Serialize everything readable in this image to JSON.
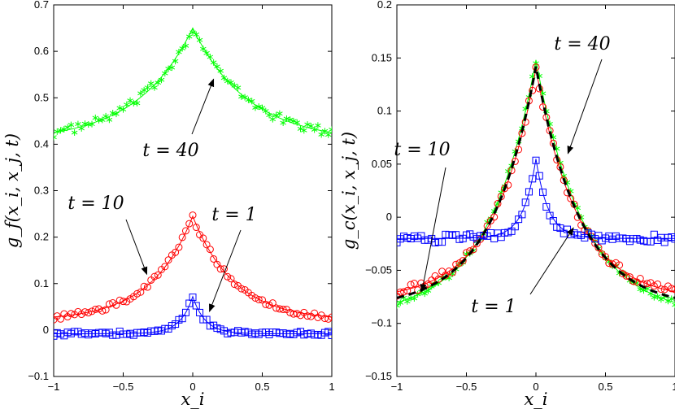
{
  "chart_data": [
    {
      "type": "line",
      "ylabel": "g_f(x_i, x_j, t)",
      "xlabel": "x_i",
      "xlim": [
        -1,
        1
      ],
      "ylim": [
        -0.1,
        0.7
      ],
      "xticks": [
        "−1",
        "−0.5",
        "0",
        "0.5",
        "1"
      ],
      "yticks": [
        "−0.1",
        "0",
        "0.1",
        "0.2",
        "0.3",
        "0.4",
        "0.5",
        "0.6",
        "0.7"
      ],
      "grid": false,
      "series": [
        {
          "label": "t = 40",
          "color": "#00ff00",
          "marker": "star",
          "model": {
            "base": 0.405,
            "peak": 0.65,
            "decay": 0.4,
            "skew": 0.0
          },
          "noise": 0.01
        },
        {
          "label": "t = 10",
          "color": "#ff0000",
          "marker": "circle",
          "model": {
            "base": 0.02,
            "peak": 0.245,
            "decay": 0.3,
            "skew": 0.0
          },
          "noise": 0.006
        },
        {
          "label": "t = 1",
          "color": "#0000ff",
          "marker": "square",
          "model": {
            "base": -0.008,
            "peak": 0.072,
            "decay": 0.09,
            "skew": 0.0
          },
          "noise": 0.005
        }
      ],
      "annotations": [
        {
          "text": "t = 40",
          "target": [
            0.15,
            0.54
          ]
        },
        {
          "text": "t = 10",
          "target": [
            -0.33,
            0.12
          ]
        },
        {
          "text": "t = 1",
          "target": [
            0.12,
            0.04
          ]
        }
      ]
    },
    {
      "type": "line",
      "ylabel": "g_c(x_i, x_j, t)",
      "xlabel": "x_i",
      "xlim": [
        -1,
        1
      ],
      "ylim": [
        -0.15,
        0.2
      ],
      "xticks": [
        "−1",
        "−0.5",
        "0",
        "0.5",
        "1"
      ],
      "yticks": [
        "−0.15",
        "−0.1",
        "−0.05",
        "0",
        "0.05",
        "0.1",
        "0.15",
        "0.2"
      ],
      "grid": false,
      "series": [
        {
          "label": "t = 40",
          "color": "#00ff00",
          "marker": "star",
          "model": {
            "base": -0.093,
            "peak": 0.148,
            "decay": 0.34,
            "skew": 0.0
          },
          "noise": 0.003
        },
        {
          "label": "t = 10",
          "color": "#ff0000",
          "marker": "circle",
          "model": {
            "base": -0.078,
            "peak": 0.14,
            "decay": 0.3,
            "skew": 0.0
          },
          "noise": 0.004
        },
        {
          "label": "t = 1",
          "color": "#0000ff",
          "marker": "square",
          "model": {
            "base": -0.02,
            "peak": 0.055,
            "decay": 0.09,
            "skew": 0.0
          },
          "noise": 0.004
        }
      ],
      "dashed_fit": {
        "color": "#000000",
        "model": {
          "base": -0.086,
          "peak": 0.142,
          "decay": 0.32
        }
      },
      "annotations": [
        {
          "text": "t = 40",
          "target": [
            0.23,
            0.06
          ]
        },
        {
          "text": "t = 10",
          "target": [
            -0.82,
            -0.07
          ]
        },
        {
          "text": "t = 1",
          "target": [
            0.27,
            -0.01
          ]
        }
      ]
    }
  ]
}
